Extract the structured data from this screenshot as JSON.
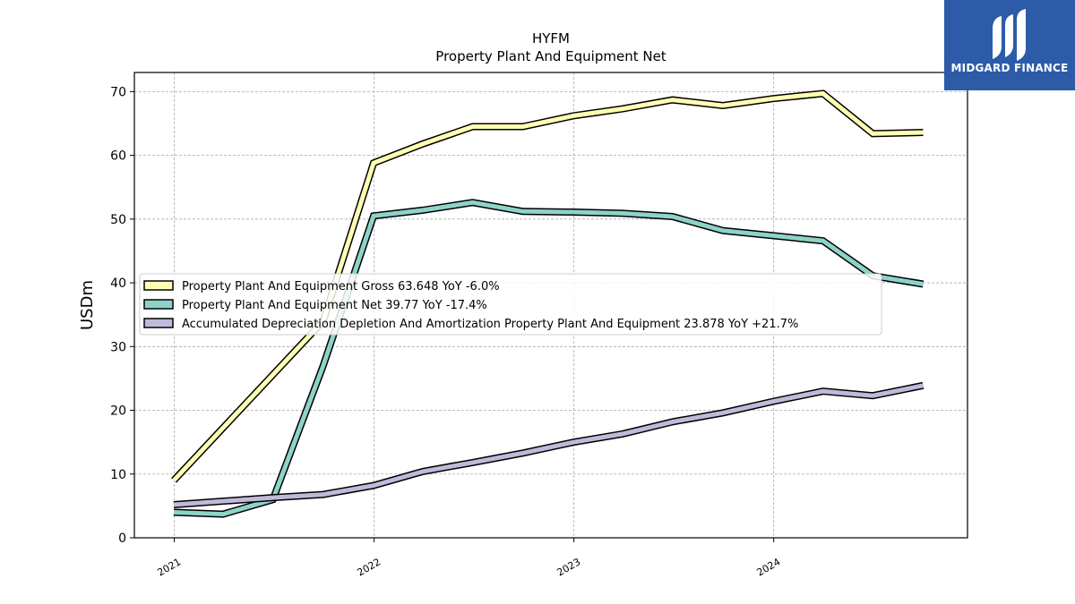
{
  "chart_data": {
    "type": "line",
    "title": "HYFM",
    "subtitle": "Property Plant And Equipment Net",
    "xlabel": "",
    "ylabel": "USDm",
    "ylim": [
      0,
      73
    ],
    "y_ticks": [
      0,
      10,
      20,
      30,
      40,
      50,
      60,
      70
    ],
    "x_tick_labels": [
      "2021",
      "2022",
      "2023",
      "2024"
    ],
    "x_ticks": [
      "2021-01-01",
      "2022-01-01",
      "2023-01-01",
      "2024-01-01"
    ],
    "x_range": [
      "2020-10-20",
      "2024-12-20"
    ],
    "grid": true,
    "legend_position": "center-left",
    "series": [
      {
        "name": "Property Plant And Equipment Gross  63.648 YoY -6.0%",
        "color": "#ffffb3",
        "x": [
          "2020-12-31",
          "2021-09-30",
          "2021-12-31",
          "2022-03-31",
          "2022-06-30",
          "2022-09-30",
          "2022-12-31",
          "2023-03-31",
          "2023-06-30",
          "2023-09-30",
          "2023-12-31",
          "2024-03-31",
          "2024-06-30",
          "2024-09-30"
        ],
        "y": [
          9.0,
          34.0,
          58.8,
          61.8,
          64.5,
          64.5,
          66.2,
          67.3,
          68.7,
          67.8,
          68.9,
          69.7,
          63.4,
          63.6
        ]
      },
      {
        "name": "Property Plant And Equipment Net  39.77 YoY -17.4%",
        "color": "#8dd3c7",
        "x": [
          "2020-12-31",
          "2021-03-31",
          "2021-06-30",
          "2021-09-30",
          "2021-12-31",
          "2022-03-31",
          "2022-06-30",
          "2022-09-30",
          "2022-12-31",
          "2023-03-31",
          "2023-06-30",
          "2023-09-30",
          "2023-12-31",
          "2024-03-31",
          "2024-06-30",
          "2024-09-30"
        ],
        "y": [
          4.0,
          3.7,
          6.0,
          27.0,
          50.5,
          51.4,
          52.6,
          51.2,
          51.1,
          50.9,
          50.4,
          48.2,
          47.4,
          46.6,
          41.1,
          39.8
        ]
      },
      {
        "name": "Accumulated Depreciation Depletion And Amortization Property Plant And Equipment  23.878 YoY +21.7%",
        "color": "#bebada",
        "x": [
          "2020-12-31",
          "2021-06-30",
          "2021-09-30",
          "2021-12-31",
          "2022-03-31",
          "2022-06-30",
          "2022-09-30",
          "2022-12-31",
          "2023-03-31",
          "2023-06-30",
          "2023-09-30",
          "2023-12-31",
          "2024-03-31",
          "2024-06-30",
          "2024-09-30"
        ],
        "y": [
          5.2,
          6.3,
          6.8,
          8.2,
          10.4,
          11.8,
          13.3,
          15.0,
          16.3,
          18.2,
          19.6,
          21.4,
          23.0,
          22.3,
          23.9
        ]
      }
    ]
  },
  "logo": {
    "text": "MIDGARD FINANCE",
    "icon": "midgard-logo-icon",
    "color": "#2d5ba8"
  }
}
